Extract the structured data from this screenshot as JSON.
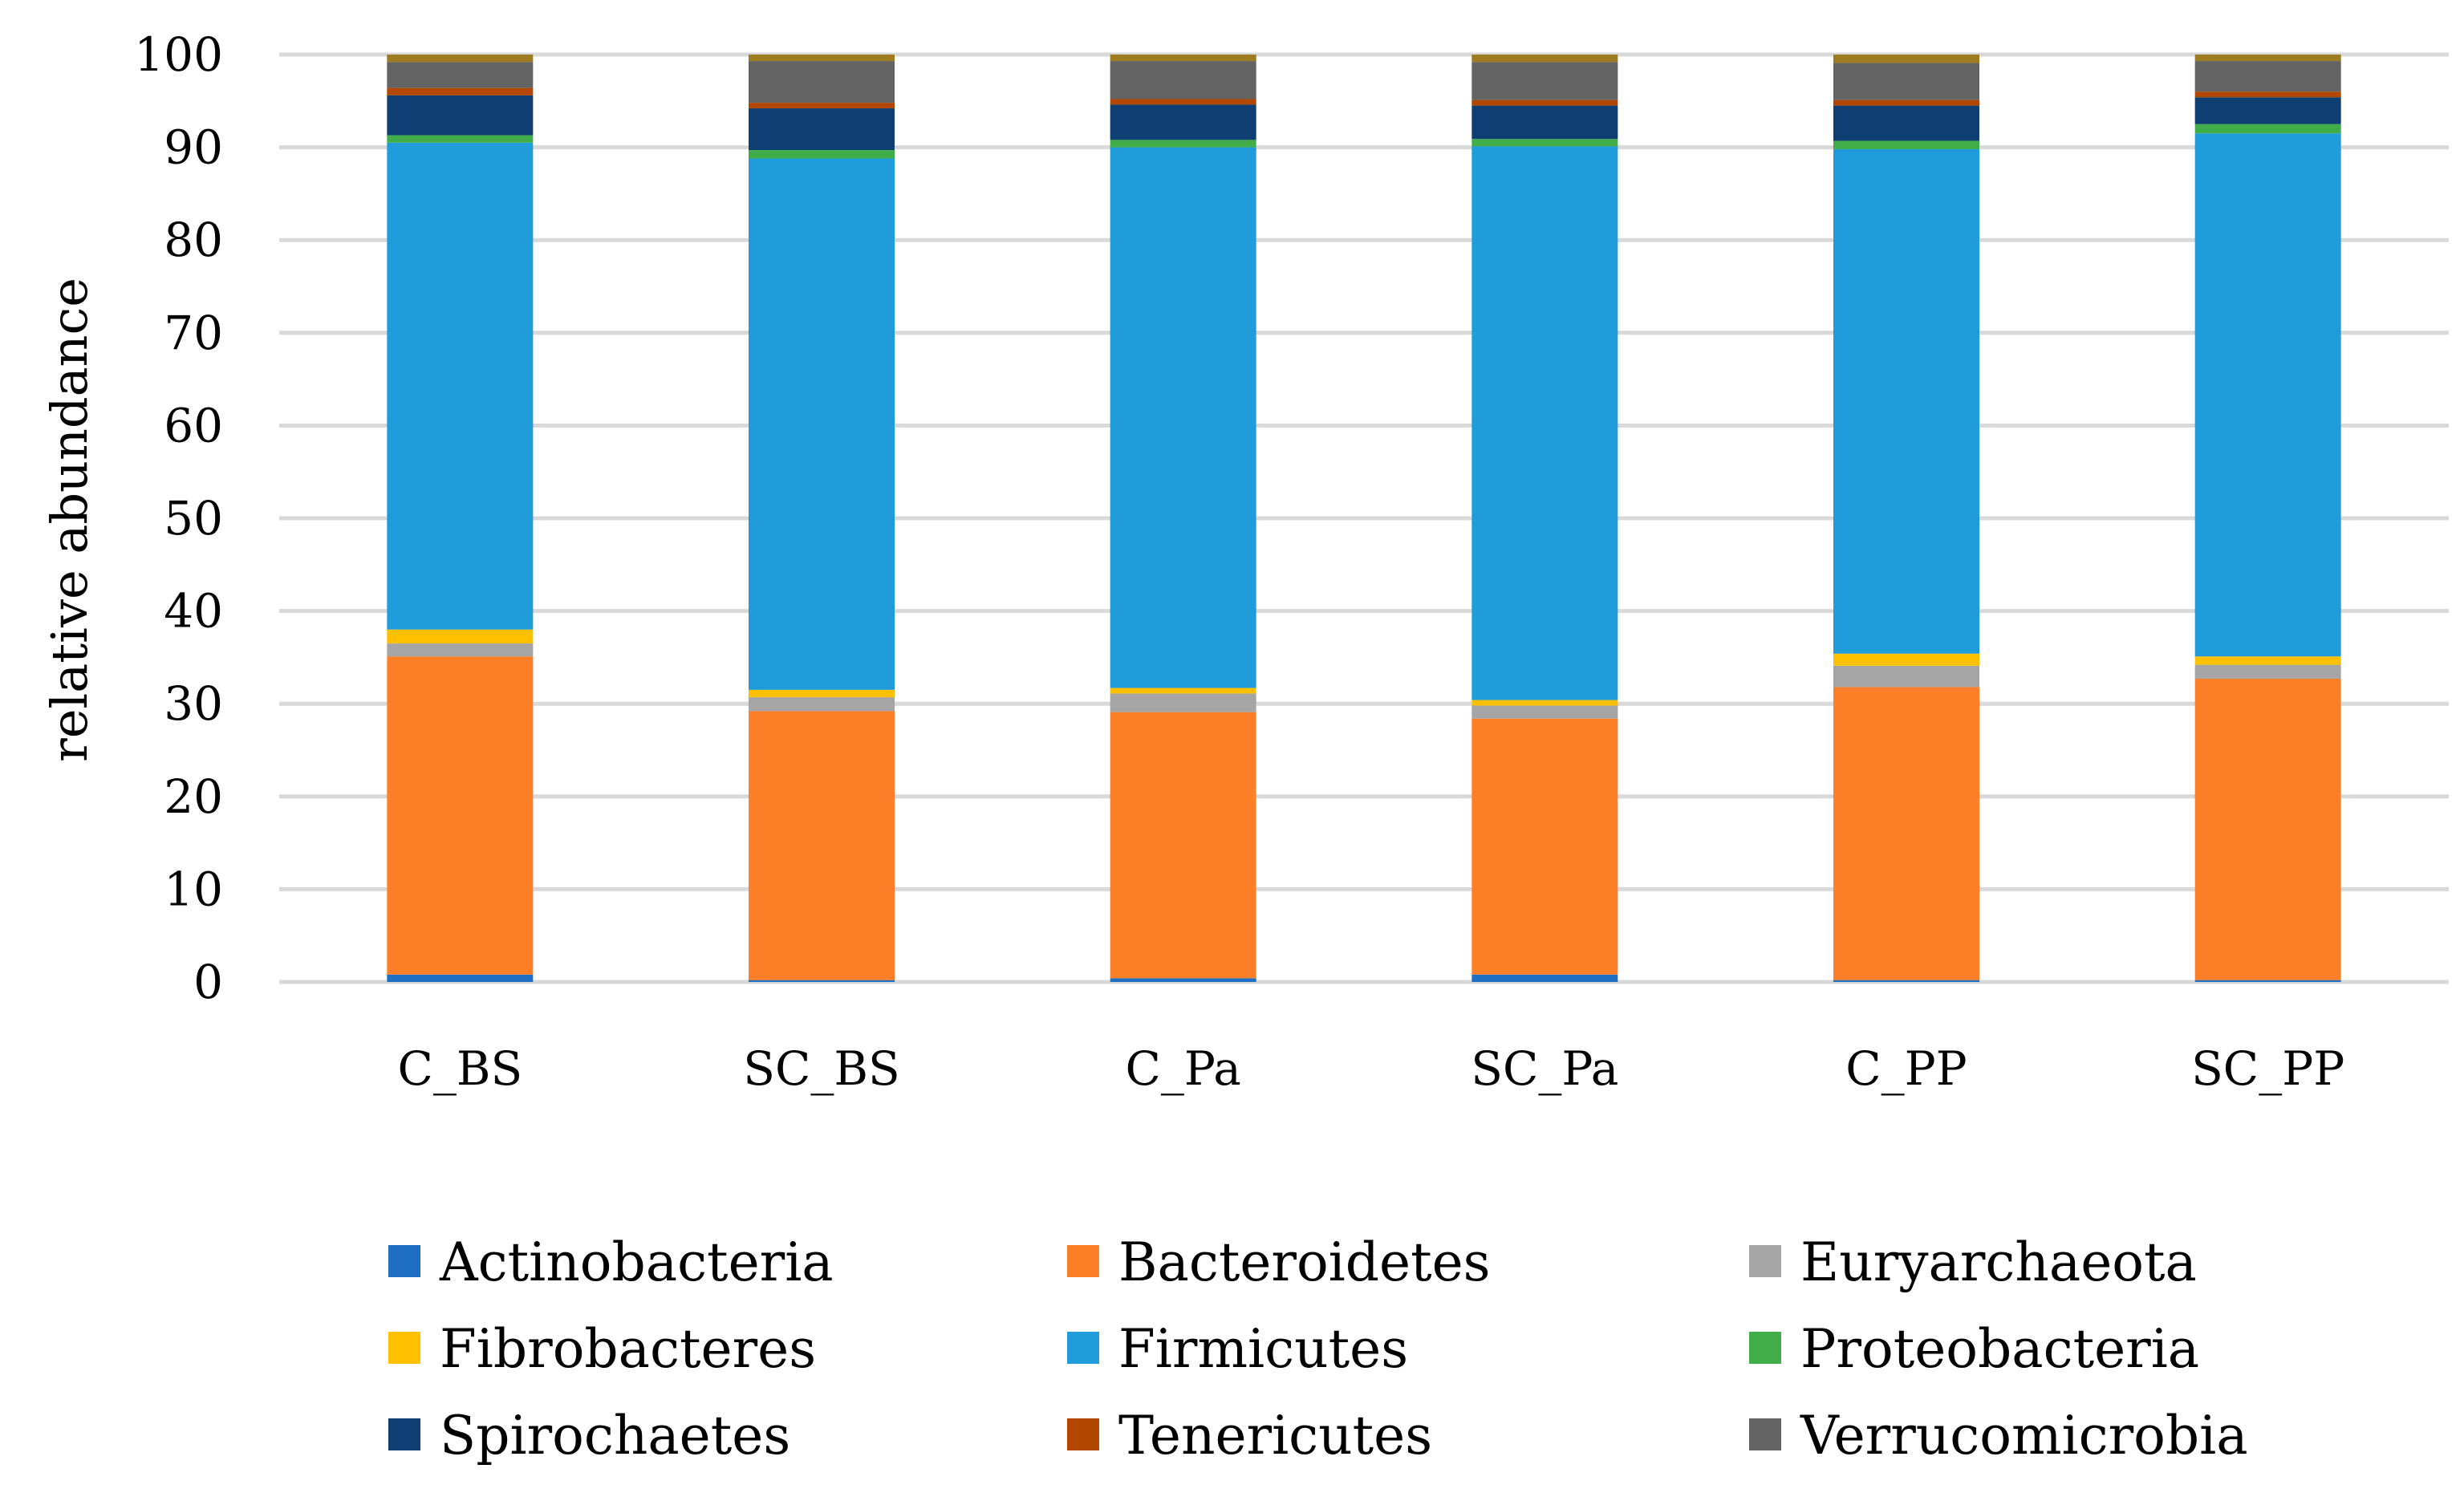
{
  "chart_data": {
    "type": "bar",
    "stacked": true,
    "title": "",
    "xlabel": "",
    "ylabel": "relative abundance",
    "ylim": [
      0,
      100
    ],
    "yticks": [
      0,
      10,
      20,
      30,
      40,
      50,
      60,
      70,
      80,
      90,
      100
    ],
    "grid": true,
    "legend_position": "bottom",
    "categories": [
      "C_BS",
      "SC_BS",
      "C_Pa",
      "SC_Pa",
      "C_PP",
      "SC_PP"
    ],
    "series": [
      {
        "name": "Actinobacteria",
        "color": "#1f6fc5",
        "values": [
          0.8,
          0.2,
          0.4,
          0.8,
          0.2,
          0.2
        ]
      },
      {
        "name": "Bacteroidetes",
        "color": "#fd7f28",
        "values": [
          34.3,
          29.0,
          28.7,
          27.6,
          31.6,
          32.5
        ]
      },
      {
        "name": "Euryarchaeota",
        "color": "#a5a5a5",
        "values": [
          1.4,
          1.5,
          2.0,
          1.4,
          2.3,
          1.5
        ]
      },
      {
        "name": "Fibrobacteres",
        "color": "#ffc000",
        "values": [
          1.5,
          0.8,
          0.6,
          0.6,
          1.3,
          0.9
        ]
      },
      {
        "name": "Firmicutes",
        "color": "#1f9cd9",
        "values": [
          52.5,
          57.3,
          58.3,
          59.7,
          54.4,
          56.4
        ]
      },
      {
        "name": "Proteobacteria",
        "color": "#40ad48",
        "values": [
          0.8,
          0.9,
          0.8,
          0.8,
          0.9,
          1.0
        ]
      },
      {
        "name": "Spirochaetes",
        "color": "#0f3e72",
        "values": [
          4.3,
          4.5,
          3.8,
          3.6,
          3.8,
          2.9
        ]
      },
      {
        "name": "Tenericutes",
        "color": "#b34700",
        "values": [
          0.8,
          0.6,
          0.6,
          0.6,
          0.6,
          0.6
        ]
      },
      {
        "name": "Verrucomicrobia",
        "color": "#636363",
        "values": [
          2.8,
          4.5,
          4.1,
          4.1,
          4.0,
          3.3
        ]
      },
      {
        "name": "",
        "color": "#9e7b1e",
        "values": [
          0.8,
          0.7,
          0.7,
          0.8,
          0.9,
          0.7
        ]
      }
    ]
  }
}
